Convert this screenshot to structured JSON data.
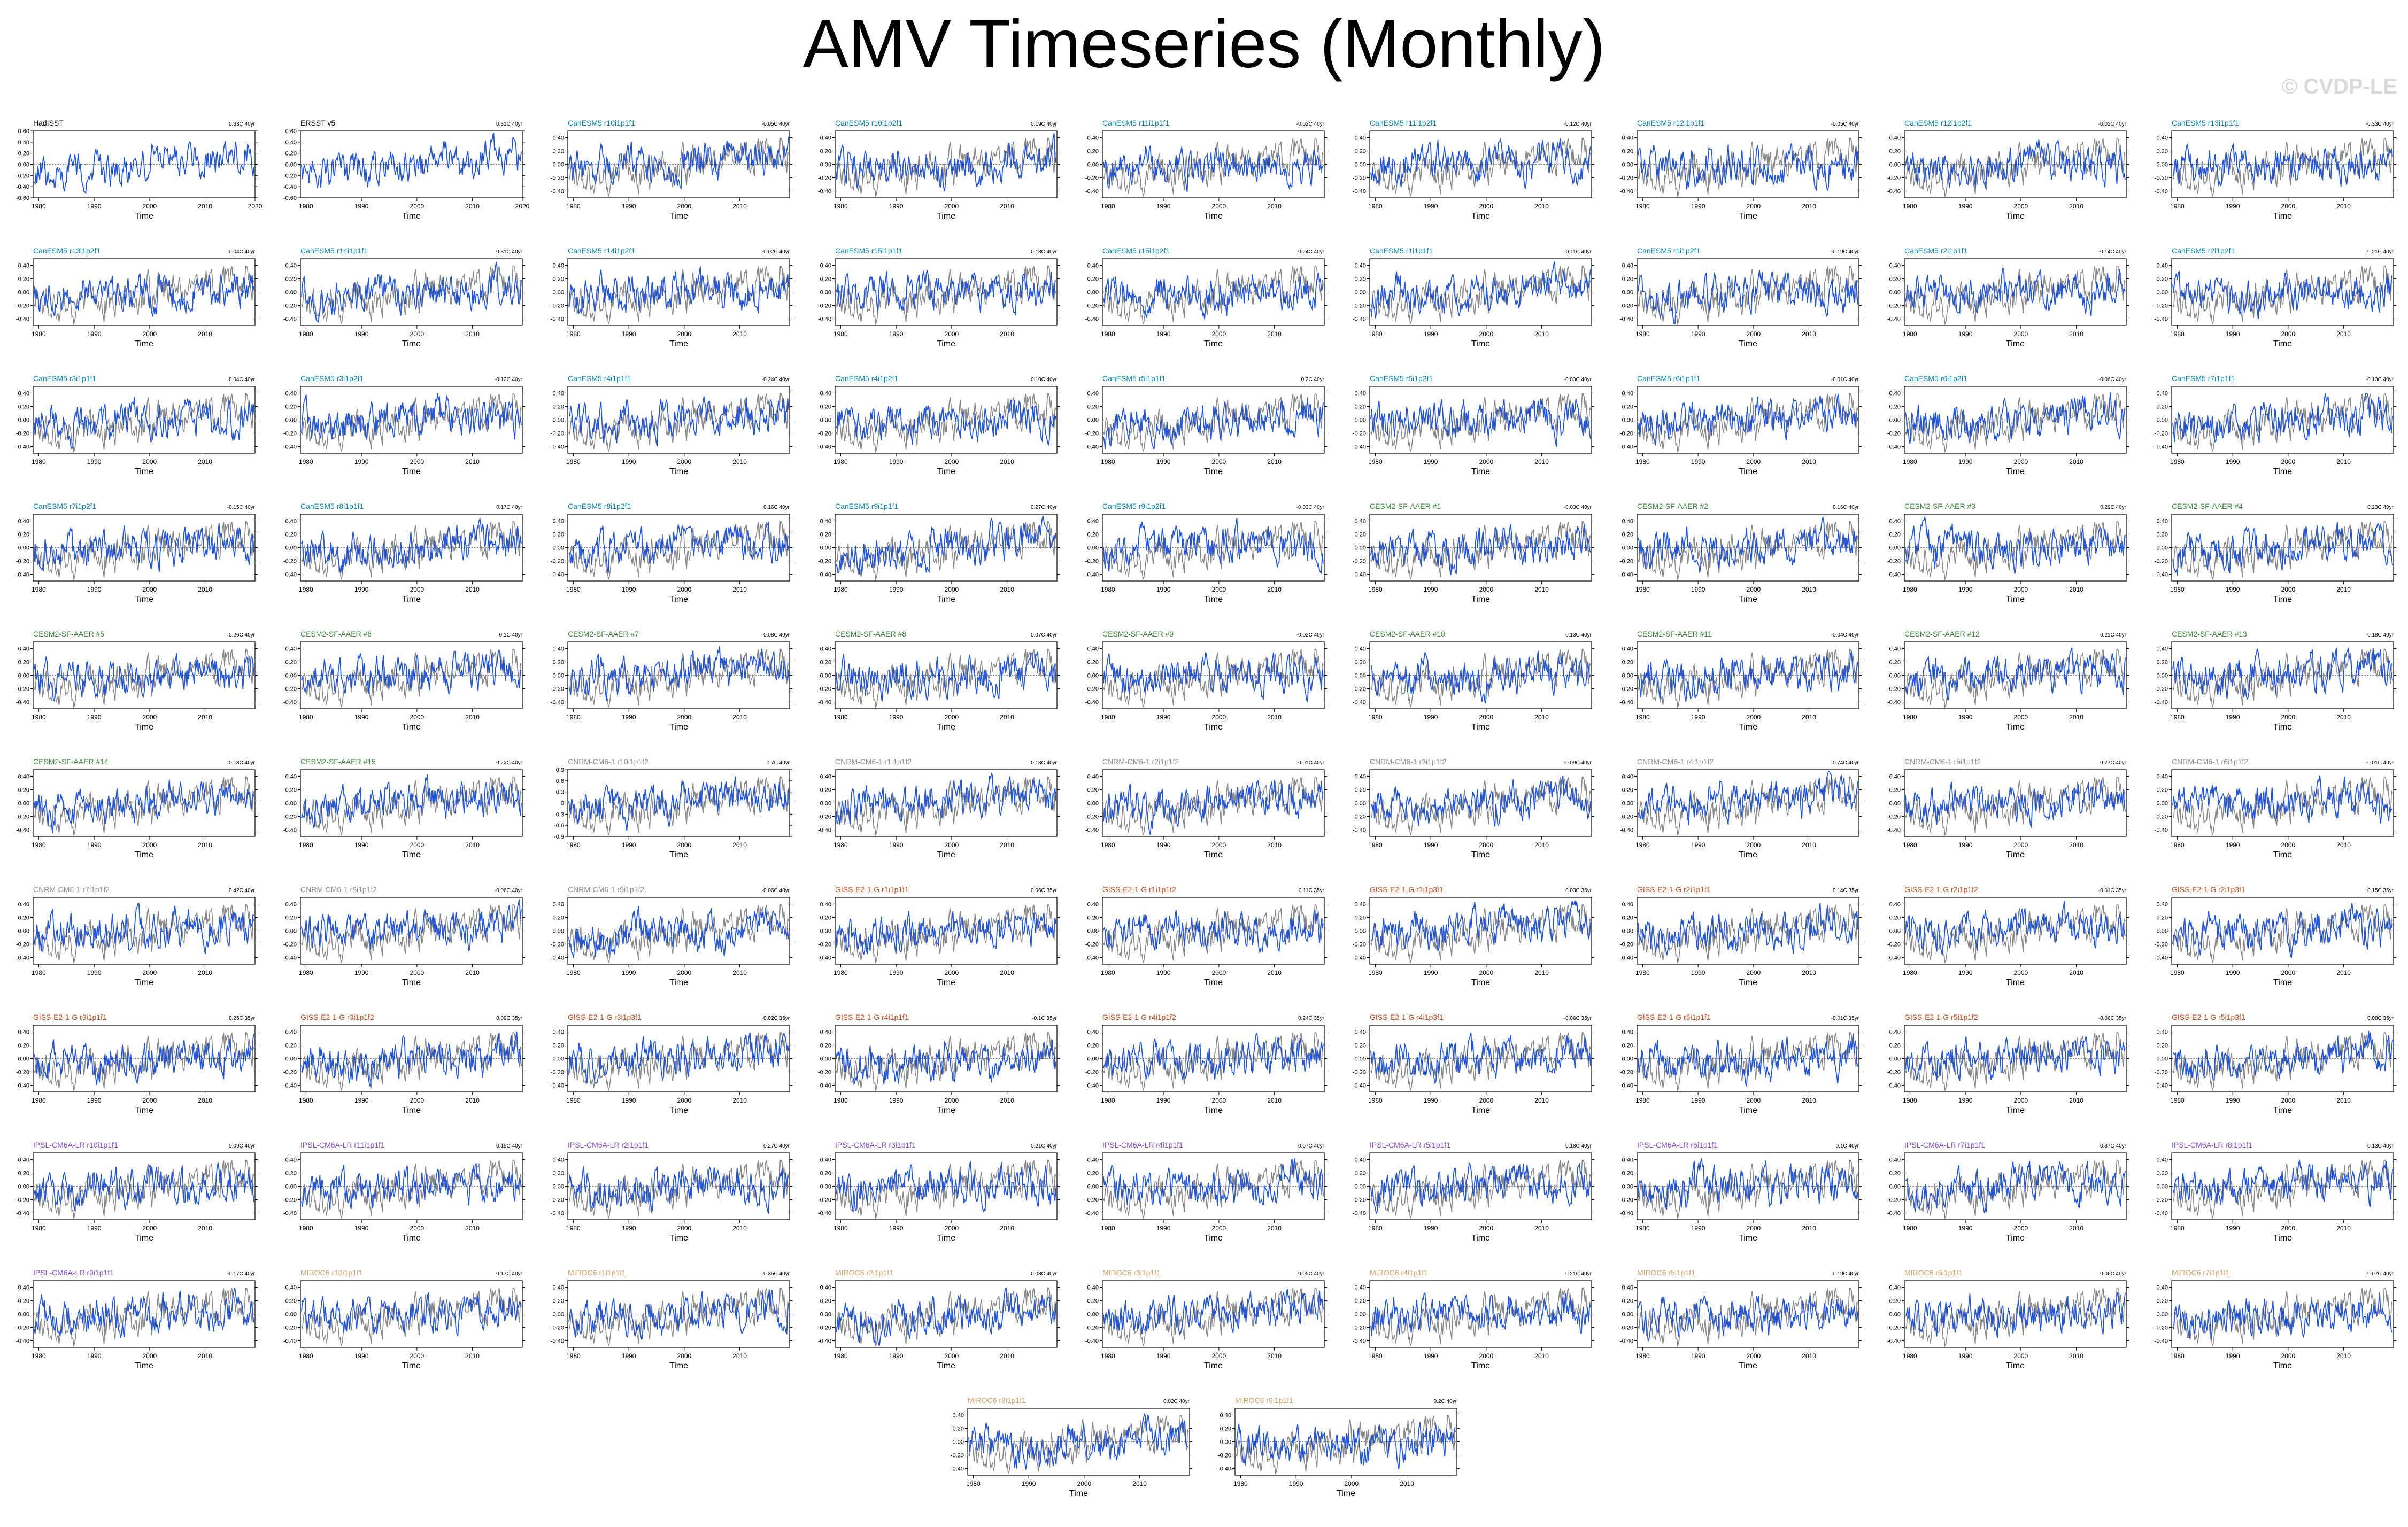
{
  "page": {
    "title": "AMV Timeseries (Monthly)",
    "watermark": "© CVDP-LE"
  },
  "colors": {
    "observed_line": "#888888",
    "model_line": "#2255dd",
    "obs_label": "#000000",
    "CanESM5": "#0b87b5",
    "CESM2-SF-AAER": "#3d8b3d",
    "CNRM-CM6-1": "#8f8f8f",
    "GISS-E2-1-G": "#cc4e1c",
    "IPSL-CM6A-LR": "#8a4fd6",
    "MIROC6": "#d6a26a"
  },
  "chart_data": {
    "type": "line",
    "xlabel": "Time",
    "x_range": [
      1979,
      2019
    ],
    "panels": [
      {
        "name": "HadISST",
        "family": "obs",
        "trend": "0.33C 40yr",
        "ylim": [
          -0.6,
          0.6
        ],
        "yticks": [
          "0.60",
          "0.40",
          "0.20",
          "0.00",
          "-0.20",
          "-0.40",
          "-0.60"
        ],
        "xticks": [
          "1980",
          "1990",
          "2000",
          "2010",
          "2020"
        ],
        "seed": 1
      },
      {
        "name": "ERSST v5",
        "family": "obs",
        "trend": "0.31C 40yr",
        "ylim": [
          -0.6,
          0.6
        ],
        "yticks": [
          "0.60",
          "0.40",
          "0.20",
          "0.00",
          "-0.20",
          "-0.40",
          "-0.60"
        ],
        "xticks": [
          "1980",
          "1990",
          "2000",
          "2010",
          "2020"
        ],
        "seed": 2
      },
      {
        "name": "CanESM5 r10i1p1f1",
        "family": "CanESM5",
        "trend": "-0.05C 40yr",
        "seed": 3
      },
      {
        "name": "CanESM5 r10i1p2f1",
        "family": "CanESM5",
        "trend": "0.19C 40yr",
        "seed": 4
      },
      {
        "name": "CanESM5 r11i1p1f1",
        "family": "CanESM5",
        "trend": "-0.02C 40yr",
        "seed": 5
      },
      {
        "name": "CanESM5 r11i1p2f1",
        "family": "CanESM5",
        "trend": "-0.12C 40yr",
        "seed": 6
      },
      {
        "name": "CanESM5 r12i1p1f1",
        "family": "CanESM5",
        "trend": "-0.05C 40yr",
        "seed": 7
      },
      {
        "name": "CanESM5 r12i1p2f1",
        "family": "CanESM5",
        "trend": "-0.02C 40yr",
        "seed": 8
      },
      {
        "name": "CanESM5 r13i1p1f1",
        "family": "CanESM5",
        "trend": "-0.33C 40yr",
        "seed": 9
      },
      {
        "name": "CanESM5 r13i1p2f1",
        "family": "CanESM5",
        "trend": "0.04C 40yr",
        "seed": 10
      },
      {
        "name": "CanESM5 r14i1p1f1",
        "family": "CanESM5",
        "trend": "0.31C 40yr",
        "seed": 11
      },
      {
        "name": "CanESM5 r14i1p2f1",
        "family": "CanESM5",
        "trend": "-0.02C 40yr",
        "seed": 12
      },
      {
        "name": "CanESM5 r15i1p1f1",
        "family": "CanESM5",
        "trend": "0.13C 40yr",
        "seed": 13
      },
      {
        "name": "CanESM5 r15i1p2f1",
        "family": "CanESM5",
        "trend": "0.24C 40yr",
        "seed": 14
      },
      {
        "name": "CanESM5 r1i1p1f1",
        "family": "CanESM5",
        "trend": "-0.11C 40yr",
        "seed": 15
      },
      {
        "name": "CanESM5 r1i1p2f1",
        "family": "CanESM5",
        "trend": "-0.19C 40yr",
        "seed": 16
      },
      {
        "name": "CanESM5 r2i1p1f1",
        "family": "CanESM5",
        "trend": "-0.14C 40yr",
        "seed": 17
      },
      {
        "name": "CanESM5 r2i1p2f1",
        "family": "CanESM5",
        "trend": "0.21C 40yr",
        "seed": 18
      },
      {
        "name": "CanESM5 r3i1p1f1",
        "family": "CanESM5",
        "trend": "0.04C 40yr",
        "seed": 19
      },
      {
        "name": "CanESM5 r3i1p2f1",
        "family": "CanESM5",
        "trend": "-0.12C 40yr",
        "seed": 20
      },
      {
        "name": "CanESM5 r4i1p1f1",
        "family": "CanESM5",
        "trend": "-0.24C 40yr",
        "seed": 21
      },
      {
        "name": "CanESM5 r4i1p2f1",
        "family": "CanESM5",
        "trend": "0.10C 40yr",
        "seed": 22
      },
      {
        "name": "CanESM5 r5i1p1f1",
        "family": "CanESM5",
        "trend": "0.2C 40yr",
        "seed": 23
      },
      {
        "name": "CanESM5 r5i1p2f1",
        "family": "CanESM5",
        "trend": "-0.03C 40yr",
        "seed": 24
      },
      {
        "name": "CanESM5 r6i1p1f1",
        "family": "CanESM5",
        "trend": "-0.01C 40yr",
        "seed": 25
      },
      {
        "name": "CanESM5 r6i1p2f1",
        "family": "CanESM5",
        "trend": "-0.06C 40yr",
        "seed": 26
      },
      {
        "name": "CanESM5 r7i1p1f1",
        "family": "CanESM5",
        "trend": "-0.13C 40yr",
        "seed": 27
      },
      {
        "name": "CanESM5 r7i1p2f1",
        "family": "CanESM5",
        "trend": "-0.15C 40yr",
        "seed": 28
      },
      {
        "name": "CanESM5 r8i1p1f1",
        "family": "CanESM5",
        "trend": "0.17C 40yr",
        "seed": 29
      },
      {
        "name": "CanESM5 r8i1p2f1",
        "family": "CanESM5",
        "trend": "0.16C 40yr",
        "seed": 30
      },
      {
        "name": "CanESM5 r9i1p1f1",
        "family": "CanESM5",
        "trend": "0.27C 40yr",
        "seed": 31
      },
      {
        "name": "CanESM5 r9i1p2f1",
        "family": "CanESM5",
        "trend": "-0.03C 40yr",
        "seed": 32
      },
      {
        "name": "CESM2-SF-AAER #1",
        "family": "CESM2-SF-AAER",
        "trend": "-0.03C 40yr",
        "seed": 33
      },
      {
        "name": "CESM2-SF-AAER #2",
        "family": "CESM2-SF-AAER",
        "trend": "0.16C 40yr",
        "seed": 34
      },
      {
        "name": "CESM2-SF-AAER #3",
        "family": "CESM2-SF-AAER",
        "trend": "0.29C 40yr",
        "seed": 35
      },
      {
        "name": "CESM2-SF-AAER #4",
        "family": "CESM2-SF-AAER",
        "trend": "0.23C 40yr",
        "seed": 36
      },
      {
        "name": "CESM2-SF-AAER #5",
        "family": "CESM2-SF-AAER",
        "trend": "0.26C 40yr",
        "seed": 37
      },
      {
        "name": "CESM2-SF-AAER #6",
        "family": "CESM2-SF-AAER",
        "trend": "0.1C 40yr",
        "seed": 38
      },
      {
        "name": "CESM2-SF-AAER #7",
        "family": "CESM2-SF-AAER",
        "trend": "0.08C 40yr",
        "seed": 39
      },
      {
        "name": "CESM2-SF-AAER #8",
        "family": "CESM2-SF-AAER",
        "trend": "0.07C 40yr",
        "seed": 40
      },
      {
        "name": "CESM2-SF-AAER #9",
        "family": "CESM2-SF-AAER",
        "trend": "-0.02C 40yr",
        "seed": 41
      },
      {
        "name": "CESM2-SF-AAER #10",
        "family": "CESM2-SF-AAER",
        "trend": "0.13C 40yr",
        "seed": 42
      },
      {
        "name": "CESM2-SF-AAER #11",
        "family": "CESM2-SF-AAER",
        "trend": "-0.04C 40yr",
        "seed": 43
      },
      {
        "name": "CESM2-SF-AAER #12",
        "family": "CESM2-SF-AAER",
        "trend": "0.21C 40yr",
        "seed": 44
      },
      {
        "name": "CESM2-SF-AAER #13",
        "family": "CESM2-SF-AAER",
        "trend": "0.18C 40yr",
        "seed": 45
      },
      {
        "name": "CESM2-SF-AAER #14",
        "family": "CESM2-SF-AAER",
        "trend": "0.18C 40yr",
        "seed": 46
      },
      {
        "name": "CESM2-SF-AAER #15",
        "family": "CESM2-SF-AAER",
        "trend": "0.22C 40yr",
        "seed": 47
      },
      {
        "name": "CNRM-CM6-1 r10i1p1f2",
        "family": "CNRM-CM6-1",
        "trend": "0.7C 40yr",
        "ylim": [
          -0.9,
          0.9
        ],
        "yticks": [
          "0.9",
          "0.6",
          "0.3",
          "0",
          "-0.3",
          "-0.6",
          "-0.9"
        ],
        "seed": 48
      },
      {
        "name": "CNRM-CM6-1 r1i1p1f2",
        "family": "CNRM-CM6-1",
        "trend": "0.13C 40yr",
        "seed": 49
      },
      {
        "name": "CNRM-CM6-1 r2i1p1f2",
        "family": "CNRM-CM6-1",
        "trend": "0.01C 40yr",
        "seed": 50
      },
      {
        "name": "CNRM-CM6-1 r3i1p1f2",
        "family": "CNRM-CM6-1",
        "trend": "-0.09C 40yr",
        "seed": 51
      },
      {
        "name": "CNRM-CM6-1 r4i1p1f2",
        "family": "CNRM-CM6-1",
        "trend": "0.74C 40yr",
        "seed": 52
      },
      {
        "name": "CNRM-CM6-1 r5i1p1f2",
        "family": "CNRM-CM6-1",
        "trend": "0.27C 40yr",
        "seed": 53
      },
      {
        "name": "CNRM-CM6-1 r6i1p1f2",
        "family": "CNRM-CM6-1",
        "trend": "0.01C 40yr",
        "seed": 54
      },
      {
        "name": "CNRM-CM6-1 r7i1p1f2",
        "family": "CNRM-CM6-1",
        "trend": "0.42C 40yr",
        "seed": 55
      },
      {
        "name": "CNRM-CM6-1 r8i1p1f2",
        "family": "CNRM-CM6-1",
        "trend": "-0.06C 40yr",
        "seed": 56
      },
      {
        "name": "CNRM-CM6-1 r9i1p1f2",
        "family": "CNRM-CM6-1",
        "trend": "-0.06C 40yr",
        "seed": 57
      },
      {
        "name": "GISS-E2-1-G r1i1p1f1",
        "family": "GISS-E2-1-G",
        "trend": "0.06C 35yr",
        "seed": 58
      },
      {
        "name": "GISS-E2-1-G r1i1p1f2",
        "family": "GISS-E2-1-G",
        "trend": "0.11C 35yr",
        "seed": 59
      },
      {
        "name": "GISS-E2-1-G r1i1p3f1",
        "family": "GISS-E2-1-G",
        "trend": "0.03C 35yr",
        "seed": 60
      },
      {
        "name": "GISS-E2-1-G r2i1p1f1",
        "family": "GISS-E2-1-G",
        "trend": "0.14C 35yr",
        "seed": 61
      },
      {
        "name": "GISS-E2-1-G r2i1p1f2",
        "family": "GISS-E2-1-G",
        "trend": "-0.01C 35yr",
        "seed": 62
      },
      {
        "name": "GISS-E2-1-G r2i1p3f1",
        "family": "GISS-E2-1-G",
        "trend": "0.15C 35yr",
        "seed": 63
      },
      {
        "name": "GISS-E2-1-G r3i1p1f1",
        "family": "GISS-E2-1-G",
        "trend": "0.25C 35yr",
        "seed": 64
      },
      {
        "name": "GISS-E2-1-G r3i1p1f2",
        "family": "GISS-E2-1-G",
        "trend": "0.09C 35yr",
        "seed": 65
      },
      {
        "name": "GISS-E2-1-G r3i1p3f1",
        "family": "GISS-E2-1-G",
        "trend": "-0.02C 35yr",
        "seed": 66
      },
      {
        "name": "GISS-E2-1-G r4i1p1f1",
        "family": "GISS-E2-1-G",
        "trend": "-0.1C 35yr",
        "seed": 67
      },
      {
        "name": "GISS-E2-1-G r4i1p1f2",
        "family": "GISS-E2-1-G",
        "trend": "0.24C 35yr",
        "seed": 68
      },
      {
        "name": "GISS-E2-1-G r4i1p3f1",
        "family": "GISS-E2-1-G",
        "trend": "-0.06C 35yr",
        "seed": 69
      },
      {
        "name": "GISS-E2-1-G r5i1p1f1",
        "family": "GISS-E2-1-G",
        "trend": "-0.01C 35yr",
        "seed": 70
      },
      {
        "name": "GISS-E2-1-G r5i1p1f2",
        "family": "GISS-E2-1-G",
        "trend": "-0.06C 35yr",
        "seed": 71
      },
      {
        "name": "GISS-E2-1-G r5i1p3f1",
        "family": "GISS-E2-1-G",
        "trend": "0.08C 35yr",
        "seed": 72
      },
      {
        "name": "IPSL-CM6A-LR r10i1p1f1",
        "family": "IPSL-CM6A-LR",
        "trend": "0.09C 40yr",
        "seed": 73
      },
      {
        "name": "IPSL-CM6A-LR r11i1p1f1",
        "family": "IPSL-CM6A-LR",
        "trend": "0.19C 40yr",
        "seed": 74
      },
      {
        "name": "IPSL-CM6A-LR r2i1p1f1",
        "family": "IPSL-CM6A-LR",
        "trend": "0.27C 40yr",
        "seed": 75
      },
      {
        "name": "IPSL-CM6A-LR r3i1p1f1",
        "family": "IPSL-CM6A-LR",
        "trend": "0.21C 40yr",
        "seed": 76
      },
      {
        "name": "IPSL-CM6A-LR r4i1p1f1",
        "family": "IPSL-CM6A-LR",
        "trend": "0.07C 40yr",
        "seed": 77
      },
      {
        "name": "IPSL-CM6A-LR r5i1p1f1",
        "family": "IPSL-CM6A-LR",
        "trend": "0.18C 40yr",
        "seed": 78
      },
      {
        "name": "IPSL-CM6A-LR r6i1p1f1",
        "family": "IPSL-CM6A-LR",
        "trend": "0.1C 40yr",
        "seed": 79
      },
      {
        "name": "IPSL-CM6A-LR r7i1p1f1",
        "family": "IPSL-CM6A-LR",
        "trend": "0.37C 40yr",
        "seed": 80
      },
      {
        "name": "IPSL-CM6A-LR r8i1p1f1",
        "family": "IPSL-CM6A-LR",
        "trend": "0.13C 40yr",
        "seed": 81
      },
      {
        "name": "IPSL-CM6A-LR r9i1p1f1",
        "family": "IPSL-CM6A-LR",
        "trend": "-0.17C 40yr",
        "seed": 82
      },
      {
        "name": "MIROC6 r10i1p1f1",
        "family": "MIROC6",
        "trend": "0.17C 40yr",
        "seed": 83
      },
      {
        "name": "MIROC6 r1i1p1f1",
        "family": "MIROC6",
        "trend": "0.35C 40yr",
        "seed": 84
      },
      {
        "name": "MIROC6 r2i1p1f1",
        "family": "MIROC6",
        "trend": "0.08C 40yr",
        "seed": 85
      },
      {
        "name": "MIROC6 r3i1p1f1",
        "family": "MIROC6",
        "trend": "0.05C 40yr",
        "seed": 86
      },
      {
        "name": "MIROC6 r4i1p1f1",
        "family": "MIROC6",
        "trend": "0.21C 40yr",
        "seed": 87
      },
      {
        "name": "MIROC6 r5i1p1f1",
        "family": "MIROC6",
        "trend": "0.19C 40yr",
        "seed": 88
      },
      {
        "name": "MIROC6 r6i1p1f1",
        "family": "MIROC6",
        "trend": "0.06C 40yr",
        "seed": 89
      },
      {
        "name": "MIROC6 r7i1p1f1",
        "family": "MIROC6",
        "trend": "0.07C 40yr",
        "seed": 90
      },
      {
        "name": "MIROC6 r8i1p1f1",
        "family": "MIROC6",
        "trend": "0.02C 40yr",
        "seed": 91
      },
      {
        "name": "MIROC6 r9i1p1f1",
        "family": "MIROC6",
        "trend": "0.2C 40yr",
        "seed": 92
      }
    ],
    "default_yticks": [
      "0.40",
      "0.20",
      "0.00",
      "-0.20",
      "-0.40"
    ],
    "default_ylim": [
      -0.5,
      0.5
    ],
    "default_xticks": [
      "1980",
      "1990",
      "2000",
      "2010"
    ]
  }
}
